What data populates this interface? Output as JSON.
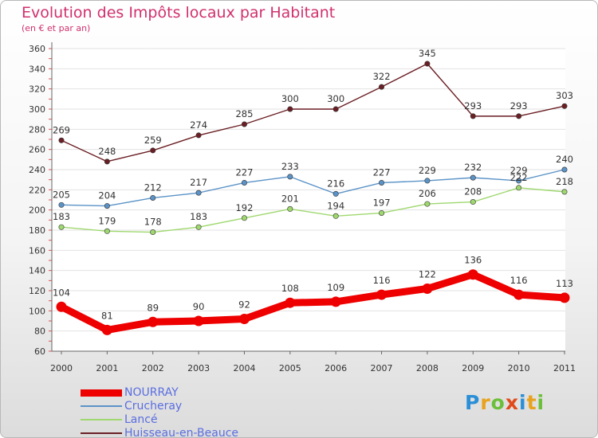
{
  "title": "Evolution des Impôts locaux par Habitant",
  "subtitle": "(en € et par an)",
  "logo_text": "Proxiti",
  "chart_data": {
    "type": "line",
    "title": "Evolution des Impôts locaux par Habitant",
    "subtitle": "(en € et par an)",
    "x": [
      "2000",
      "2001",
      "2002",
      "2003",
      "2004",
      "2005",
      "2006",
      "2007",
      "2008",
      "2009",
      "2010",
      "2011"
    ],
    "ylim": [
      60,
      360
    ],
    "ytick_step": 20,
    "yticks": [
      "60",
      "80",
      "100",
      "120",
      "140",
      "160",
      "180",
      "200",
      "220",
      "240",
      "260",
      "280",
      "300",
      "320",
      "340",
      "360"
    ],
    "grid": "horizontal",
    "legend_position": "bottom-left",
    "series": [
      {
        "name": "Huisseau-en-Beauce",
        "color": "#6b1f24",
        "values": [
          269,
          248,
          259,
          274,
          285,
          300,
          300,
          322,
          345,
          293,
          293,
          303
        ]
      },
      {
        "name": "Crucheray",
        "color": "#5b93c7",
        "values": [
          205,
          204,
          212,
          217,
          227,
          233,
          216,
          227,
          229,
          232,
          229,
          240
        ]
      },
      {
        "name": "Lancé",
        "color": "#9fd86f",
        "values": [
          183,
          179,
          178,
          183,
          192,
          201,
          194,
          197,
          206,
          208,
          222,
          218
        ]
      },
      {
        "name": "NOURRAY",
        "color": "#ee0000",
        "values": [
          104,
          81,
          89,
          90,
          92,
          108,
          109,
          116,
          122,
          136,
          116,
          113
        ]
      }
    ],
    "legend_order": [
      "NOURRAY",
      "Crucheray",
      "Lancé",
      "Huisseau-en-Beauce"
    ]
  }
}
